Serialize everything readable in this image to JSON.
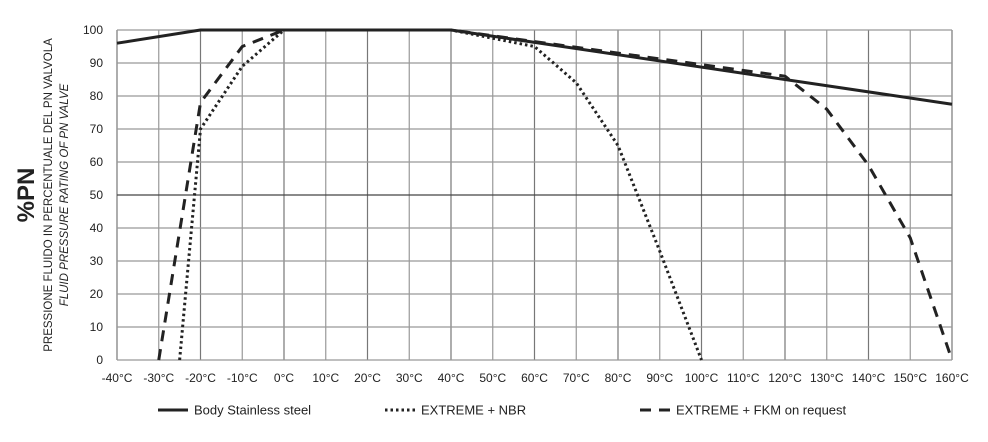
{
  "chart_data": {
    "type": "line",
    "ylabel_main": "%PN",
    "ylabel_it": "PRESSIONE FLUIDO IN PERCENTUALE DEL PN VALVOLA",
    "ylabel_en": "FLUID PRESSURE RATING OF PN VALVE",
    "xlim": [
      -40,
      160
    ],
    "ylim": [
      0,
      100
    ],
    "grid": true,
    "legend_position": "bottom",
    "x_ticks": [
      -40,
      -30,
      -20,
      -10,
      0,
      10,
      20,
      30,
      40,
      50,
      60,
      70,
      80,
      90,
      100,
      110,
      120,
      130,
      140,
      150,
      160
    ],
    "x_tick_labels": [
      "-40°C",
      "-30°C",
      "-20°C",
      "-10°C",
      "0°C",
      "10°C",
      "20°C",
      "30°C",
      "40°C",
      "50°C",
      "60°C",
      "70°C",
      "80°C",
      "90°C",
      "100°C",
      "110°C",
      "120°C",
      "130°C",
      "140°C",
      "150°C",
      "160°C"
    ],
    "y_ticks": [
      0,
      10,
      20,
      30,
      40,
      50,
      60,
      70,
      80,
      90,
      100
    ],
    "y_tick_labels": [
      "0",
      "10",
      "20",
      "30",
      "40",
      "50",
      "60",
      "70",
      "80",
      "90",
      "100"
    ],
    "series": [
      {
        "name": "Body Stainless steel",
        "style": "solid",
        "points": [
          [
            -40,
            96
          ],
          [
            -20,
            100
          ],
          [
            40,
            100
          ],
          [
            160,
            77.5
          ]
        ]
      },
      {
        "name": "EXTREME + NBR",
        "style": "dotted",
        "points": [
          [
            -25,
            0
          ],
          [
            -20,
            70
          ],
          [
            -10,
            89
          ],
          [
            0,
            100
          ],
          [
            40,
            100
          ],
          [
            60,
            95
          ],
          [
            70,
            84
          ],
          [
            80,
            65
          ],
          [
            90,
            33
          ],
          [
            100,
            0
          ]
        ]
      },
      {
        "name": "EXTREME + FKM on request",
        "style": "dashed",
        "points": [
          [
            -30,
            0
          ],
          [
            -20,
            78
          ],
          [
            -10,
            95
          ],
          [
            0,
            100
          ],
          [
            40,
            100
          ],
          [
            120,
            86
          ],
          [
            130,
            76
          ],
          [
            140,
            59
          ],
          [
            150,
            37
          ],
          [
            160,
            0
          ]
        ]
      }
    ],
    "colors": {
      "line": "#222222",
      "grid_major": "#777777",
      "grid_minor": "#999999"
    }
  }
}
